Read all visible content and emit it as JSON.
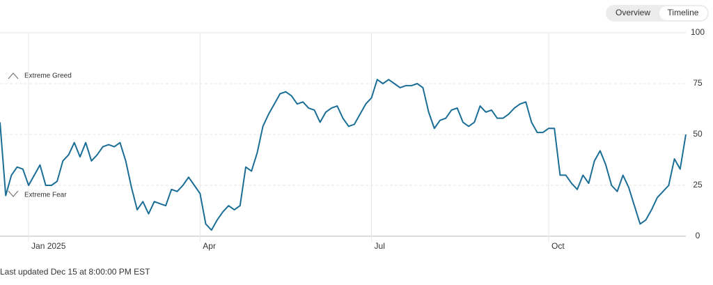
{
  "header": {
    "buttons": [
      "Overview",
      "Timeline"
    ]
  },
  "chart_data": {
    "type": "line",
    "categories": [
      null,
      null,
      null,
      null,
      null,
      "Jan 2025",
      null,
      null,
      null,
      null,
      null,
      null,
      null,
      null,
      null,
      null,
      null,
      null,
      null,
      null,
      null,
      null,
      null,
      null,
      null,
      null,
      null,
      null,
      null,
      null,
      null,
      null,
      null,
      null,
      null,
      "Apr",
      null,
      null,
      null,
      null,
      null,
      null,
      null,
      null,
      null,
      null,
      null,
      null,
      null,
      null,
      null,
      null,
      null,
      null,
      null,
      null,
      null,
      null,
      null,
      null,
      null,
      null,
      null,
      null,
      null,
      "Jul",
      null,
      null,
      null,
      null,
      null,
      null,
      null,
      null,
      null,
      null,
      null,
      null,
      null,
      null,
      null,
      null,
      null,
      null,
      null,
      null,
      null,
      null,
      null,
      null,
      null,
      null,
      null,
      null,
      null,
      null,
      "Oct",
      null,
      null,
      null,
      null,
      null,
      null,
      null,
      null,
      null,
      null,
      null,
      null,
      null,
      null,
      null,
      null,
      null,
      null,
      null,
      null,
      null,
      null,
      null,
      null
    ],
    "values": [
      56,
      20,
      30,
      34,
      33,
      25,
      30,
      35,
      25,
      25,
      27,
      37,
      40,
      46,
      39,
      46,
      37,
      40,
      44,
      45,
      44,
      46,
      37,
      24,
      13,
      17,
      11,
      17,
      16,
      15,
      23,
      22,
      25,
      29,
      25,
      21,
      6,
      3,
      8,
      12,
      15,
      13,
      15,
      34,
      32,
      41,
      54,
      60,
      65,
      70,
      71,
      69,
      65,
      66,
      63,
      62,
      56,
      61,
      63,
      64,
      58,
      54,
      55,
      60,
      65,
      68,
      77,
      75,
      77,
      75,
      73,
      74,
      74,
      75,
      73,
      61,
      53,
      57,
      58,
      62,
      63,
      56,
      54,
      56,
      64,
      61,
      62,
      58,
      58,
      60,
      63,
      65,
      66,
      56,
      51,
      51,
      53,
      53,
      30,
      30,
      26,
      23,
      30,
      26,
      37,
      42,
      35,
      25,
      22,
      30,
      24,
      15,
      6,
      8,
      13,
      19,
      22,
      25,
      38,
      33,
      50
    ],
    "color": "#1a6e96",
    "ylim": [
      0,
      100
    ],
    "yticks": [
      0,
      25,
      50,
      75,
      100
    ],
    "grid": true,
    "annotations": [
      "Extreme Greed",
      "Extreme Fear"
    ],
    "footnote": "Last updated Dec 15 at 8:00:00 PM EST"
  }
}
